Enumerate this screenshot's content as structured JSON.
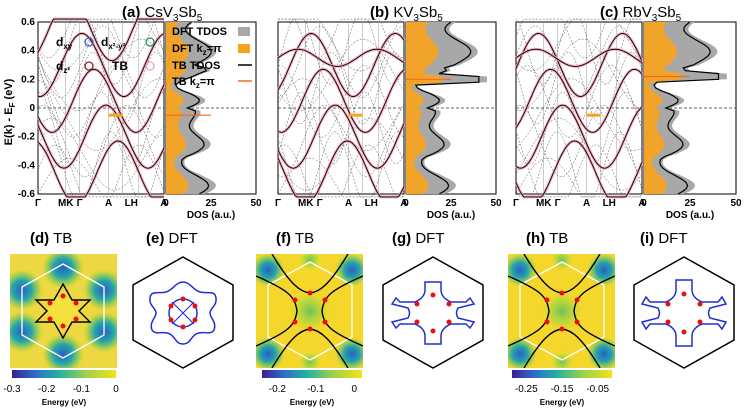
{
  "chart_data": [
    {
      "type": "line",
      "panel": "a",
      "title_label": "(a)",
      "title_compound": "CsV",
      "title_sub1": "3",
      "title_mid": "Sb",
      "title_sub2": "5",
      "ylabel": "E(k) - E",
      "ylabel_sub": "F",
      "ylabel_unit": " (eV)",
      "ylim": [
        -0.6,
        0.6
      ],
      "yticks": [
        "0.6",
        "0.4",
        "0.2",
        "0",
        "-0.2",
        "-0.4",
        "-0.6"
      ],
      "kpath": [
        "Γ",
        "MK",
        "Γ",
        "A",
        "LH",
        "A"
      ],
      "fermi_level": 0,
      "legend": [
        {
          "text": "d",
          "sub": "xy",
          "color": "#3a5fcd"
        },
        {
          "text": "d",
          "sub": "x²-y²",
          "color": "#2e8b57"
        },
        {
          "text": "d",
          "sub": "z²",
          "color": "#8b1a1a"
        },
        {
          "text": "TB",
          "sub": "",
          "color": "#f4a0b0"
        }
      ],
      "dos": {
        "xlabel": "DOS (a.u.)",
        "xticks": [
          "0",
          "25",
          "50"
        ],
        "legend": [
          {
            "name": "DFT TDOS",
            "style": "gray-fill"
          },
          {
            "name": "DFT k",
            "sub": "z",
            "suffix": "=π",
            "style": "orange-fill"
          },
          {
            "name": "TB TDOS",
            "style": "black-line"
          },
          {
            "name": "TB k",
            "sub": "z",
            "suffix": "=π",
            "style": "orange-line"
          }
        ]
      }
    },
    {
      "type": "line",
      "panel": "b",
      "title_label": "(b)",
      "title_compound": "KV",
      "title_sub1": "3",
      "title_mid": "Sb",
      "title_sub2": "5",
      "kpath": [
        "Γ",
        "MK",
        "Γ",
        "A",
        "LH",
        "A"
      ],
      "dos": {
        "xlabel": "DOS (a.u.)",
        "xticks": [
          "0",
          "25",
          "50"
        ]
      }
    },
    {
      "type": "line",
      "panel": "c",
      "title_label": "(c)",
      "title_compound": "RbV",
      "title_sub1": "3",
      "title_mid": "Sb",
      "title_sub2": "5",
      "kpath": [
        "Γ",
        "MK",
        "Γ",
        "A",
        "LH",
        "A"
      ],
      "dos": {
        "xlabel": "DOS (a.u.)",
        "xticks": [
          "0",
          "25",
          "50"
        ]
      }
    },
    {
      "type": "heatmap",
      "panel": "d",
      "title_label": "(d)",
      "title_text": "TB",
      "colorbar": {
        "ticks": [
          "-0.3",
          "-0.2",
          "-0.1",
          "0"
        ],
        "label": "Energy (eV)"
      }
    },
    {
      "type": "diagram",
      "panel": "e",
      "title_label": "(e)",
      "title_text": "DFT"
    },
    {
      "type": "heatmap",
      "panel": "f",
      "title_label": "(f)",
      "title_text": "TB",
      "colorbar": {
        "ticks": [
          "-0.2",
          "-0.1",
          "0"
        ],
        "label": "Energy (eV)"
      }
    },
    {
      "type": "diagram",
      "panel": "g",
      "title_label": "(g)",
      "title_text": "DFT"
    },
    {
      "type": "heatmap",
      "panel": "h",
      "title_label": "(h)",
      "title_text": "TB",
      "colorbar": {
        "ticks": [
          "-0.25",
          "-0.15",
          "-0.05"
        ],
        "label": "Energy (eV)"
      }
    },
    {
      "type": "diagram",
      "panel": "i",
      "title_label": "(i)",
      "title_text": "DFT"
    }
  ],
  "colors": {
    "gray_fill": "#a8a8a8",
    "orange": "#f9a21b",
    "orange_line": "#f26b1d",
    "tb_pink": "#f4a0b0",
    "dft_dash": "#555555",
    "fs_blue": "#1e2fd6",
    "fs_red": "#e81010"
  }
}
